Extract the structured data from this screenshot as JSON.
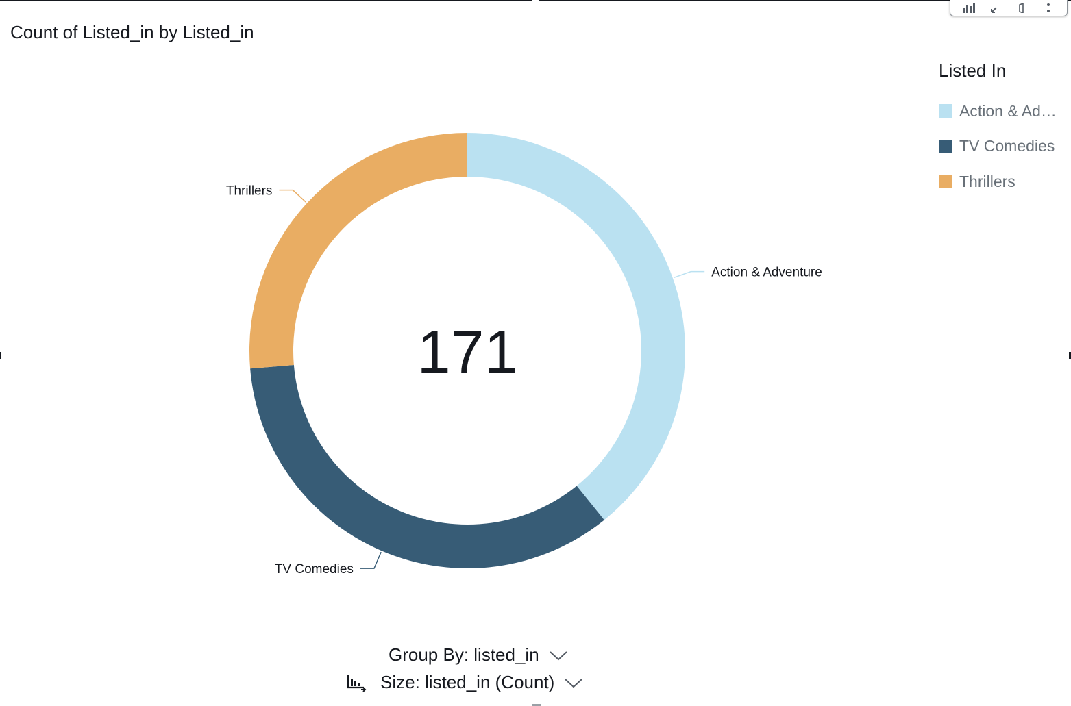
{
  "visual": {
    "title": "Count of Listed_in by Listed_in",
    "toolbar": {
      "icons": [
        "bar-chart-icon",
        "collapse-arrows-icon",
        "speaker-icon",
        "more-vertical-icon"
      ]
    }
  },
  "legend": {
    "title": "Listed In",
    "items": [
      {
        "label": "Action & Adventure",
        "color": "#bae1f1"
      },
      {
        "label": "TV Comedies",
        "color": "#375c76"
      },
      {
        "label": "Thrillers",
        "color": "#e9ad63"
      }
    ]
  },
  "chart_data": {
    "type": "donut",
    "title": "Count of Listed_in by Listed_in",
    "center_value": "171",
    "slices": [
      {
        "label": "Action & Adventure",
        "value": 67,
        "color": "#bae1f1"
      },
      {
        "label": "TV Comedies",
        "value": 59,
        "color": "#375c76"
      },
      {
        "label": "Thrillers",
        "value": 45,
        "color": "#e9ad63"
      }
    ],
    "legend_position": "top-right"
  },
  "field_wells": {
    "group_by": "Group By: listed_in",
    "size": "Size: listed_in (Count)"
  }
}
